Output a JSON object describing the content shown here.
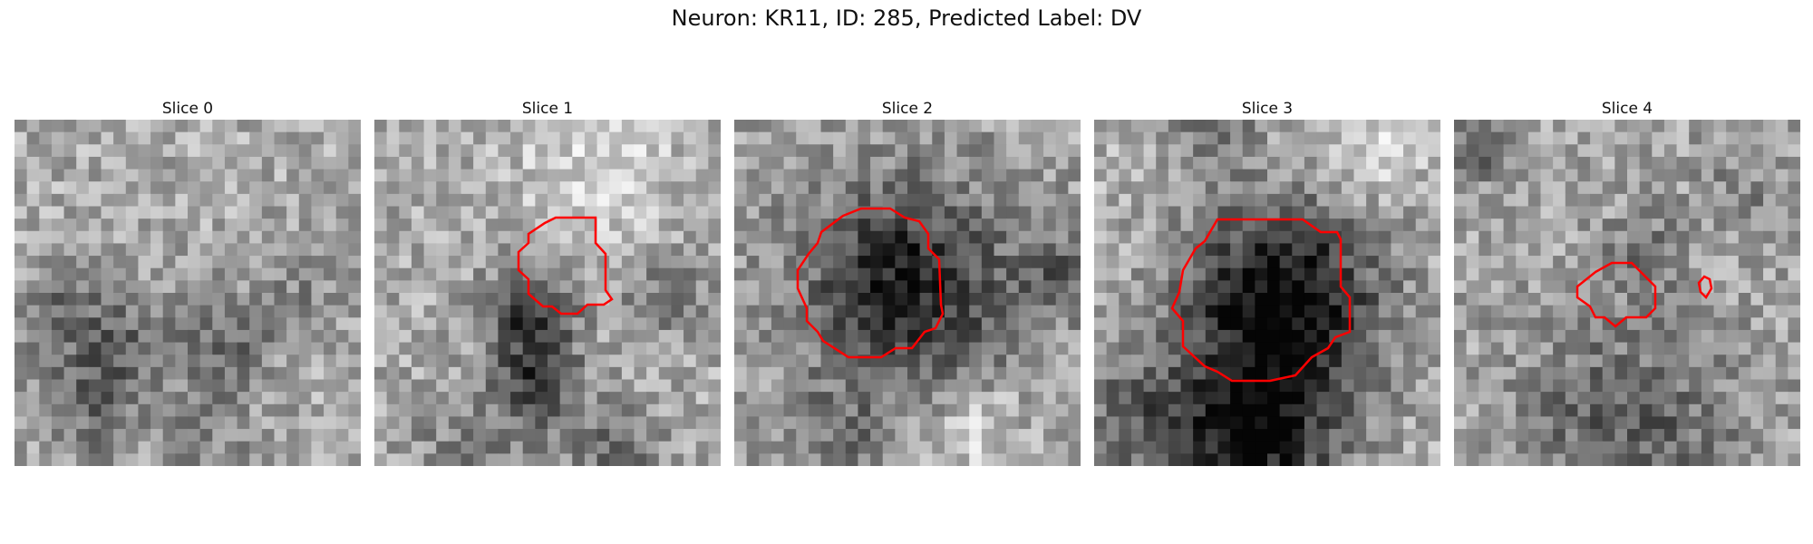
{
  "figure": {
    "title": "Neuron: KR11, ID: 285, Predicted Label: DV"
  },
  "panels": [
    {
      "title": "Slice 0"
    },
    {
      "title": "Slice 1"
    },
    {
      "title": "Slice 2"
    },
    {
      "title": "Slice 3"
    },
    {
      "title": "Slice 4"
    }
  ],
  "colors": {
    "contour": "#ff0000",
    "colormap": "grayscale"
  }
}
